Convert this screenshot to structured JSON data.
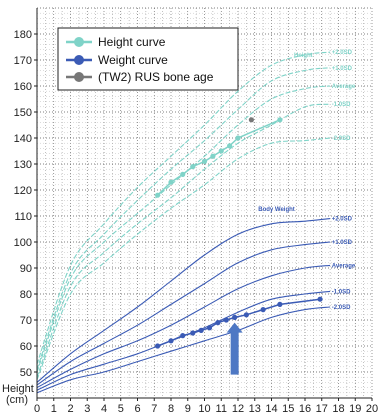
{
  "chart_data": {
    "type": "line",
    "xlabel": "",
    "ylabel": "Height",
    "yunit": "(cm)",
    "xlim": [
      0,
      20
    ],
    "ylim": [
      40,
      190
    ],
    "x_ticks": [
      "0",
      "1",
      "2",
      "3",
      "4",
      "5",
      "6",
      "7",
      "8",
      "9",
      "10",
      "11",
      "12",
      "13",
      "14",
      "15",
      "16",
      "17",
      "18",
      "19",
      "20"
    ],
    "y_ticks": [
      "50",
      "60",
      "70",
      "80",
      "90",
      "100",
      "110",
      "120",
      "130",
      "140",
      "150",
      "160",
      "170",
      "180"
    ],
    "grid": true,
    "legend": {
      "placement": "top-left",
      "entries": [
        {
          "label": "Height curve",
          "color": "#7fd3c8"
        },
        {
          "label": "Weight curve",
          "color": "#3b5bb5"
        },
        {
          "label": "(TW2) RUS bone age",
          "color": "#777777"
        }
      ]
    },
    "height_band_labels": [
      "+2.0SD",
      "+1.0SD",
      "Average",
      "-1.0SD",
      "-2.0SD"
    ],
    "height_label": "Height",
    "weight_band_labels": [
      "Body Weight",
      "+2.0SD",
      "+1.0SD",
      "Average",
      "-1.0SD",
      "-2.0SD"
    ],
    "height_percentile_curves": [
      {
        "name": "+2.0SD",
        "x": [
          0,
          2,
          4,
          6,
          8,
          10,
          12,
          14,
          16,
          17.5
        ],
        "y": [
          53,
          91,
          107,
          121,
          133,
          145,
          158,
          168,
          172,
          173
        ]
      },
      {
        "name": "+1.0SD",
        "x": [
          0,
          2,
          4,
          6,
          8,
          10,
          12,
          14,
          16,
          17.5
        ],
        "y": [
          51,
          88,
          103,
          116,
          128,
          139,
          151,
          162,
          166,
          167
        ]
      },
      {
        "name": "Average",
        "x": [
          0,
          2,
          4,
          6,
          8,
          10,
          12,
          14,
          16,
          17.5
        ],
        "y": [
          50,
          86,
          100,
          111,
          122,
          133,
          145,
          155,
          159,
          160
        ]
      },
      {
        "name": "-1.0SD",
        "x": [
          0,
          2,
          4,
          6,
          8,
          10,
          12,
          14,
          16,
          17.5
        ],
        "y": [
          48,
          83,
          96,
          107,
          117,
          128,
          138,
          145,
          152,
          153
        ]
      },
      {
        "name": "-2.0SD",
        "x": [
          0,
          2,
          4,
          6,
          8,
          10,
          12,
          14,
          16,
          17.5
        ],
        "y": [
          47,
          80,
          92,
          103,
          113,
          122,
          132,
          138,
          139,
          140
        ]
      }
    ],
    "weight_percentile_curves": [
      {
        "name": "+2.0SD",
        "x": [
          0,
          2,
          4,
          6,
          8,
          10,
          12,
          14,
          16,
          17.5
        ],
        "y": [
          46,
          57,
          66,
          75,
          85,
          95,
          103,
          107,
          108,
          109
        ]
      },
      {
        "name": "+1.0SD",
        "x": [
          0,
          2,
          4,
          6,
          8,
          10,
          12,
          14,
          16,
          17.5
        ],
        "y": [
          45,
          54,
          61,
          68,
          76,
          84,
          92,
          97,
          99,
          100
        ]
      },
      {
        "name": "Average",
        "x": [
          0,
          2,
          4,
          6,
          8,
          10,
          12,
          14,
          16,
          17.5
        ],
        "y": [
          44,
          51,
          57,
          62,
          68,
          75,
          82,
          87,
          90,
          91
        ]
      },
      {
        "name": "-1.0SD",
        "x": [
          0,
          2,
          4,
          6,
          8,
          10,
          12,
          14,
          16,
          17.5
        ],
        "y": [
          43,
          49,
          53,
          57,
          62,
          67,
          73,
          78,
          80,
          81
        ]
      },
      {
        "name": "-2.0SD",
        "x": [
          0,
          2,
          4,
          6,
          8,
          10,
          12,
          14,
          16,
          17.5
        ],
        "y": [
          42,
          47,
          50,
          54,
          58,
          62,
          66,
          71,
          74,
          75
        ]
      }
    ],
    "series": [
      {
        "name": "Height curve",
        "x": [
          7.2,
          8,
          8.7,
          9.3,
          10,
          10.5,
          11,
          11.5,
          12,
          14.5
        ],
        "y": [
          118,
          123,
          126,
          129,
          131,
          133,
          135,
          137,
          140,
          147
        ]
      },
      {
        "name": "Weight curve",
        "x": [
          7.2,
          8,
          8.7,
          9.3,
          9.8,
          10.3,
          10.8,
          11.3,
          11.8,
          12.5,
          13.5,
          14.5,
          16.9
        ],
        "y": [
          60,
          62,
          64,
          65,
          66,
          67,
          69,
          70,
          71,
          72,
          74,
          76,
          78
        ]
      },
      {
        "name": "(TW2) RUS bone age",
        "x": [
          12.8
        ],
        "y": [
          147
        ]
      }
    ],
    "arrow": {
      "x": 11.8,
      "y_from": 49,
      "y_to": 69
    }
  }
}
